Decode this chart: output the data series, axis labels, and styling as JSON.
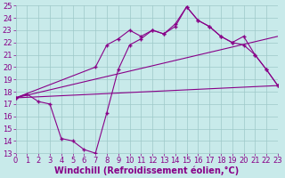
{
  "xlabel": "Windchill (Refroidissement éolien,°C)",
  "bg_color": "#c8eaea",
  "grid_color": "#9ec8c8",
  "line_color": "#880088",
  "xlim": [
    0,
    23
  ],
  "ylim": [
    13,
    25
  ],
  "xticks": [
    0,
    1,
    2,
    3,
    4,
    5,
    6,
    7,
    8,
    9,
    10,
    11,
    12,
    13,
    14,
    15,
    16,
    17,
    18,
    19,
    20,
    21,
    22,
    23
  ],
  "yticks": [
    13,
    14,
    15,
    16,
    17,
    18,
    19,
    20,
    21,
    22,
    23,
    24,
    25
  ],
  "line1_x": [
    0,
    23
  ],
  "line1_y": [
    17.5,
    18.5
  ],
  "line2_x": [
    0,
    23
  ],
  "line2_y": [
    17.5,
    22.5
  ],
  "line3_x": [
    0,
    7,
    8,
    9,
    10,
    11,
    12,
    13,
    14,
    15,
    16,
    17,
    18,
    19,
    20,
    21,
    22,
    23
  ],
  "line3_y": [
    17.5,
    20.0,
    21.8,
    22.3,
    23.0,
    22.5,
    23.0,
    22.7,
    23.5,
    24.9,
    23.8,
    23.3,
    22.5,
    22.0,
    22.5,
    21.0,
    19.8,
    18.5
  ],
  "line4_x": [
    0,
    1,
    2,
    3,
    4,
    5,
    6,
    7,
    8,
    9,
    10,
    11,
    12,
    13,
    14,
    15,
    16,
    17,
    18,
    19,
    20,
    21,
    22,
    23
  ],
  "line4_y": [
    17.5,
    17.8,
    17.2,
    17.0,
    14.2,
    14.0,
    13.3,
    13.0,
    16.3,
    19.8,
    21.8,
    22.3,
    23.0,
    22.7,
    23.3,
    24.9,
    23.8,
    23.3,
    22.5,
    22.0,
    21.8,
    21.0,
    19.8,
    18.5
  ],
  "xlabel_fontsize": 7.0,
  "tick_fontsize": 6.0,
  "line_width": 0.8,
  "marker": "+",
  "marker_size": 3
}
